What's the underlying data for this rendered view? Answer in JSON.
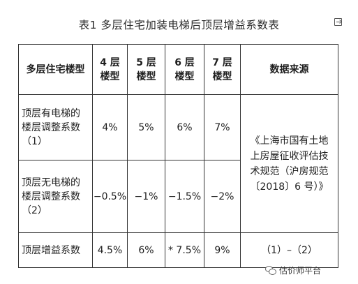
{
  "title": "表1  多层住宅加装电梯后顶层增益系数表",
  "table": {
    "headers": [
      "多层住宅楼型",
      "4 层\n楼型",
      "5 层\n楼型",
      "6 层\n楼型",
      "7 层\n楼型",
      "数据来源"
    ],
    "rows": [
      {
        "label": "顶层有电梯的\n楼层调整系数\n（1）",
        "values": [
          "4%",
          "5%",
          "6%",
          "7%"
        ]
      },
      {
        "label": "顶层无电梯的\n楼层调整系数\n（2）",
        "values": [
          "−0.5%",
          "−1%",
          "−1.5%",
          "−2%"
        ]
      },
      {
        "label": "顶层增益系数",
        "values": [
          "4.5%",
          "6%",
          "* 7.5%",
          "9%"
        ]
      }
    ],
    "source": "《上海市国有土地上房屋征收评估技术规范（沪房规范〔2018〕6 号）》",
    "formula": "（1）–（2）"
  },
  "footer": {
    "brand": "估价师平台",
    "icon": "wechat-icon"
  }
}
